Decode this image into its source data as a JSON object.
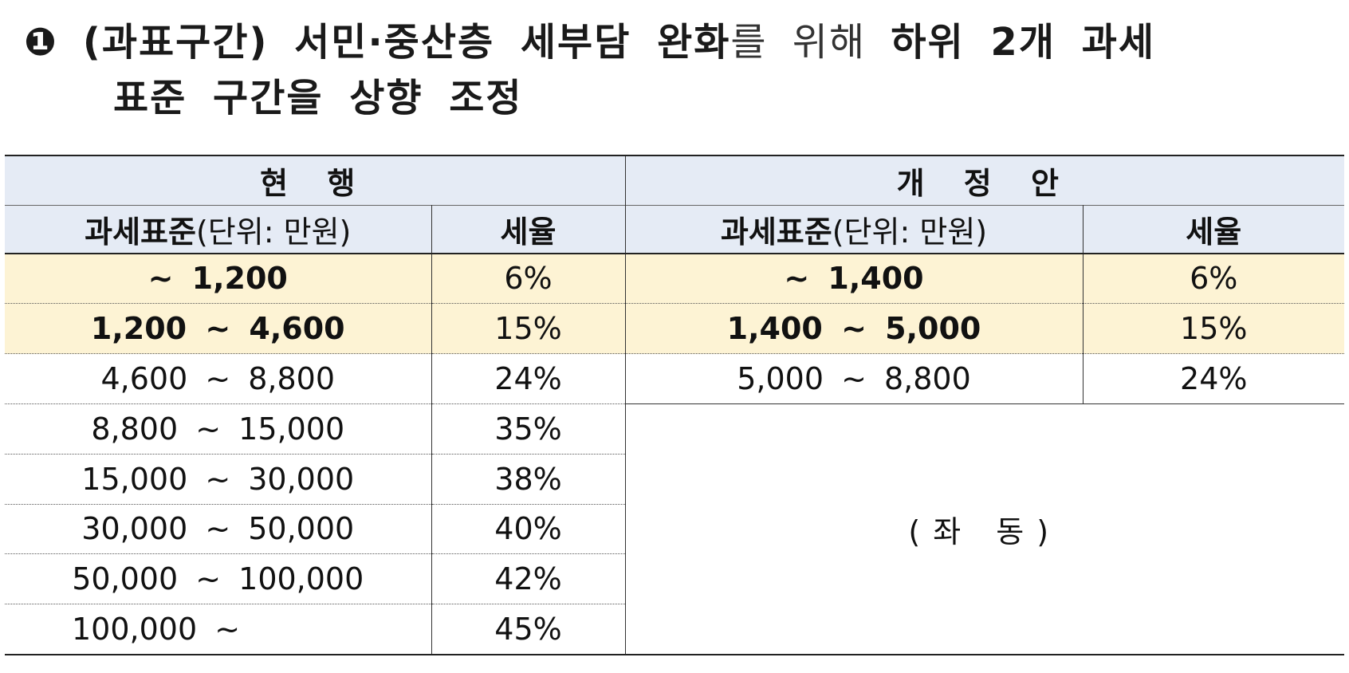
{
  "heading": {
    "bullet": "❶",
    "part1_bold": "(과표구간) 서민·중산층 세부담 완화",
    "part2_light": "를 위해",
    "part3_bold": "하위 2개 과세",
    "line2_bold": "표준 구간을 상향 조정"
  },
  "table": {
    "current_title": "현 행",
    "proposal_title": "개 정 안",
    "col_base_label": "과세표준",
    "col_base_unit": "(단위: 만원)",
    "col_rate_label": "세율",
    "current_rows": [
      {
        "range": "~ 1,200",
        "rate": "6%"
      },
      {
        "range": "1,200 ~ 4,600",
        "rate": "15%"
      },
      {
        "range": "4,600 ~ 8,800",
        "rate": "24%"
      },
      {
        "range": "8,800 ~ 15,000",
        "rate": "35%"
      },
      {
        "range": "15,000 ~ 30,000",
        "rate": "38%"
      },
      {
        "range": "30,000 ~ 50,000",
        "rate": "40%"
      },
      {
        "range": "50,000 ~ 100,000",
        "rate": "42%"
      },
      {
        "range": "100,000 ~",
        "rate": "45%"
      }
    ],
    "proposal_rows": [
      {
        "range": "~ 1,400",
        "rate": "6%"
      },
      {
        "range": "1,400 ~ 5,000",
        "rate": "15%"
      },
      {
        "range": "5,000 ~ 8,800",
        "rate": "24%"
      }
    ],
    "same_as_left": "(좌 동)"
  },
  "colors": {
    "header_bg": "#e5ebf5",
    "highlight_bg": "#fdf3d4"
  }
}
